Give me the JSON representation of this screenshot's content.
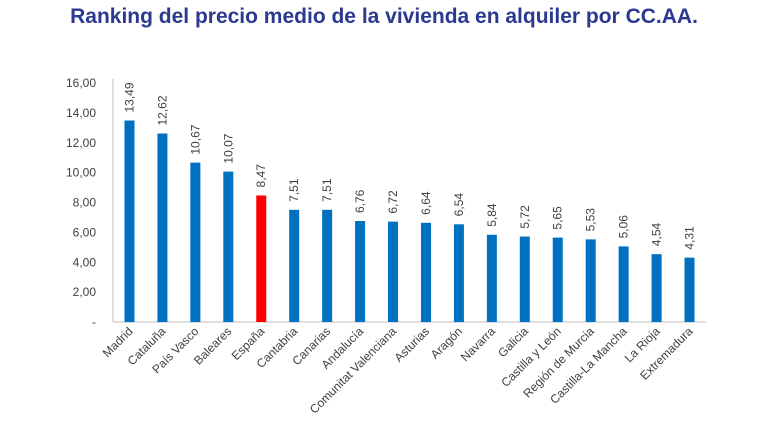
{
  "colors": {
    "title": "#2B3990",
    "bar": "#0070C0",
    "highlight_bar": "#FF0000",
    "axis": "#BFBFBF",
    "text": "#404040"
  },
  "chart_data": {
    "type": "bar",
    "title": "Ranking del precio medio de la vivienda en alquiler por CC.AA.",
    "xlabel": "",
    "ylabel": "",
    "ylim": [
      0,
      16
    ],
    "y_ticks": [
      "-",
      "2,00",
      "4,00",
      "6,00",
      "8,00",
      "10,00",
      "12,00",
      "14,00",
      "16,00"
    ],
    "grid": false,
    "categories": [
      "Madrid",
      "Cataluña",
      "País Vasco",
      "Baleares",
      "España",
      "Cantabria",
      "Canarias",
      "Andalucía",
      "Comunitat Valenciana",
      "Asturias",
      "Aragón",
      "Navarra",
      "Galicia",
      "Castilla y León",
      "Región de Murcia",
      "Castilla-La Mancha",
      "La Rioja",
      "Extremadura"
    ],
    "values": [
      13.49,
      12.62,
      10.67,
      10.07,
      8.47,
      7.51,
      7.51,
      6.76,
      6.72,
      6.64,
      6.54,
      5.84,
      5.72,
      5.65,
      5.53,
      5.06,
      4.54,
      4.31
    ],
    "value_labels": [
      "13,49",
      "12,62",
      "10,67",
      "10,07",
      "8,47",
      "7,51",
      "7,51",
      "6,76",
      "6,72",
      "6,64",
      "6,54",
      "5,84",
      "5,72",
      "5,65",
      "5,53",
      "5,06",
      "4,54",
      "4,31"
    ],
    "highlight": "España"
  }
}
